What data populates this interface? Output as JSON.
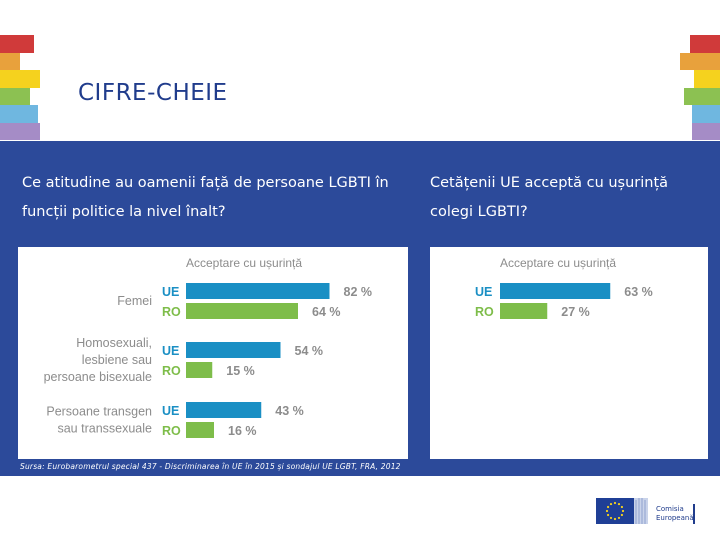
{
  "title": "CIFRE-CHEIE",
  "colors": {
    "band": "#2c4a9a",
    "ue_bar": "#1a8fc4",
    "ro_bar": "#7ebd4a",
    "label_gray": "#888888",
    "stripes": [
      "#d03a3a",
      "#e8a13c",
      "#f5d21e",
      "#8cc152",
      "#6fb7e0",
      "#a58cc6"
    ]
  },
  "left_question": "Ce atitudine au oamenii față de persoane LGBTI în funcții politice la nivel înalt?",
  "right_question": "Cetățenii UE acceptă cu ușurință colegi LGBTI?",
  "source_note": "Sursa: Eurobarometrul special 437 - Discriminarea în UE în 2015 și sondajul UE LGBT, FRA, 2012",
  "logo": {
    "line1": "Comisia",
    "line2": "Europeană",
    "flag_icon": "eu-flag-icon"
  },
  "chart_data": [
    {
      "type": "bar",
      "orientation": "horizontal",
      "title": "Acceptare cu ușurință",
      "categories": [
        {
          "label_lines": [
            "Femei"
          ]
        },
        {
          "label_lines": [
            "Homosexuali,",
            "lesbiene sau",
            "persoane bisexuale"
          ]
        },
        {
          "label_lines": [
            "Persoane transgen",
            "sau transsexuale"
          ]
        }
      ],
      "series": [
        {
          "name": "UE",
          "values": [
            82,
            54,
            43
          ]
        },
        {
          "name": "RO",
          "values": [
            64,
            15,
            16
          ]
        }
      ],
      "value_suffix": " %",
      "xlim": [
        0,
        100
      ],
      "grid": false
    },
    {
      "type": "bar",
      "orientation": "horizontal",
      "title": "Acceptare cu ușurință",
      "categories": [
        {
          "label_lines": []
        }
      ],
      "series": [
        {
          "name": "UE",
          "values": [
            63
          ]
        },
        {
          "name": "RO",
          "values": [
            27
          ]
        }
      ],
      "value_suffix": " %",
      "xlim": [
        0,
        100
      ],
      "grid": false
    }
  ]
}
